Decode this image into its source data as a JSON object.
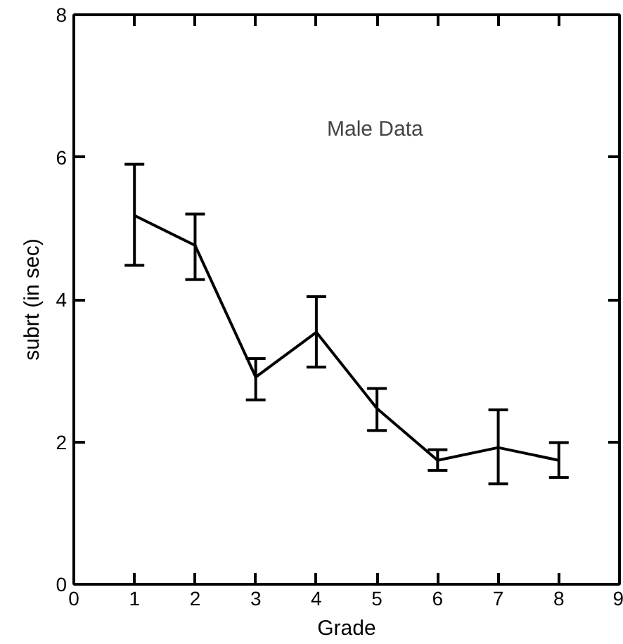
{
  "chart_data": {
    "type": "line",
    "xlabel": "Grade",
    "ylabel": "subrt (in sec)",
    "annotations": [
      "Male Data"
    ],
    "x": [
      1,
      2,
      3,
      4,
      5,
      6,
      7,
      8
    ],
    "values": [
      5.18,
      4.76,
      2.91,
      3.54,
      2.47,
      1.74,
      1.92,
      1.74
    ],
    "errors": [
      [
        4.48,
        5.9
      ],
      [
        4.28,
        5.2
      ],
      [
        2.59,
        3.17
      ],
      [
        3.05,
        4.04
      ],
      [
        2.16,
        2.75
      ],
      [
        1.6,
        1.89
      ],
      [
        1.41,
        2.45
      ],
      [
        1.5,
        1.99
      ]
    ],
    "color": "#000000",
    "marker": "none",
    "line_style": "solid",
    "grid": false,
    "xlim": [
      0,
      9
    ],
    "xticks": [
      0,
      1,
      2,
      3,
      4,
      5,
      6,
      7,
      8,
      9
    ],
    "ylim": [
      0,
      8
    ],
    "yticks": [
      0,
      2,
      4,
      6,
      8
    ]
  }
}
